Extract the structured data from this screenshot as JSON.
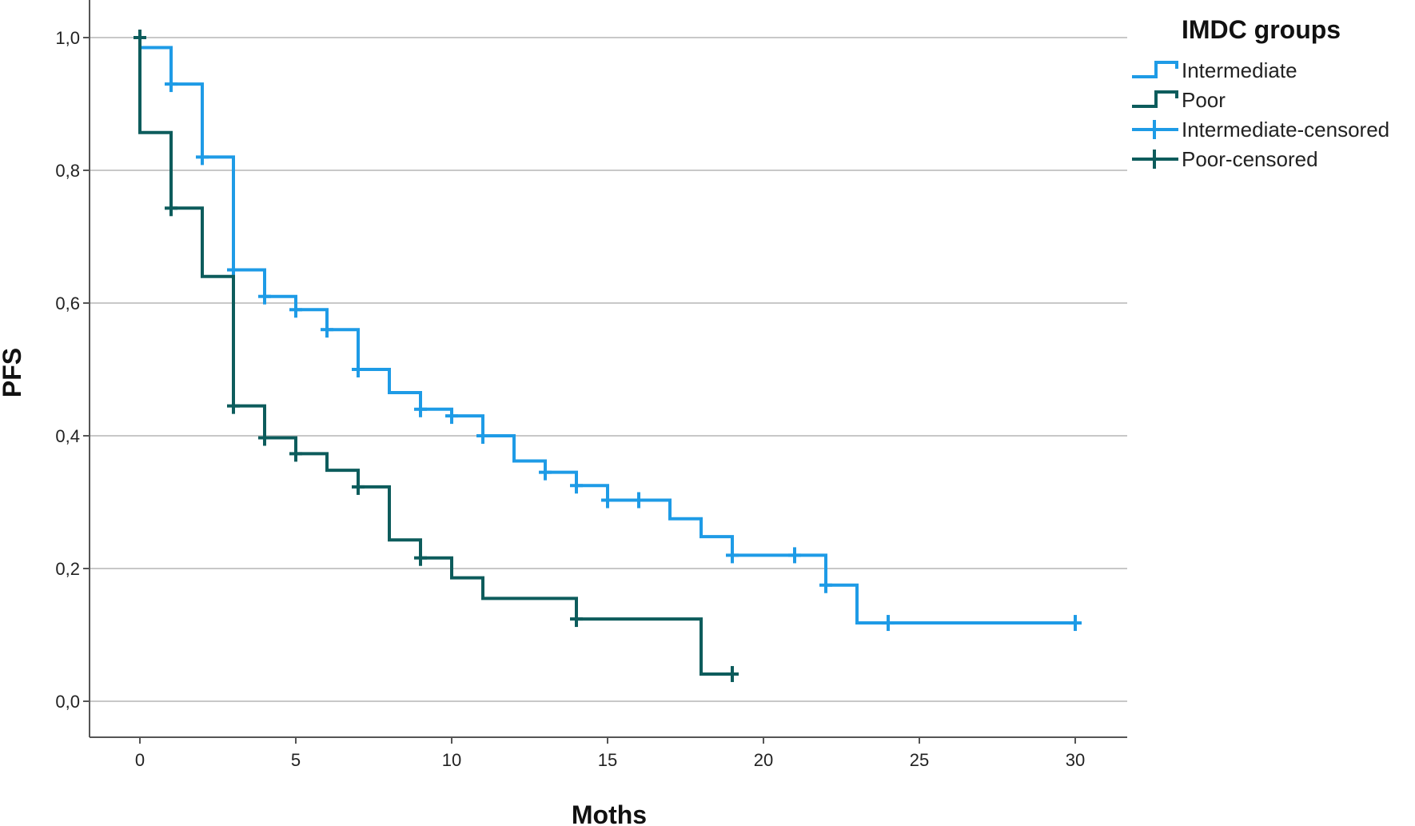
{
  "chart_data": {
    "type": "line",
    "subtype": "kaplan-meier step",
    "title": "",
    "xlabel": "Moths",
    "ylabel": "PFS",
    "xlim": [
      0,
      30
    ],
    "ylim": [
      0,
      1
    ],
    "x_ticks": [
      0,
      5,
      10,
      15,
      20,
      25,
      30
    ],
    "y_ticks": [
      "0,0",
      "0,2",
      "0,4",
      "0,6",
      "0,8",
      "1,0"
    ],
    "y_tick_values": [
      0,
      0.2,
      0.4,
      0.6,
      0.8,
      1.0
    ],
    "grid": "horizontal",
    "legend_title": "IMDC groups",
    "legend_position": "top-right",
    "legend": [
      {
        "label": "Intermediate",
        "kind": "step",
        "color": "#1e9be6"
      },
      {
        "label": "Poor",
        "kind": "step",
        "color": "#0d5c5c"
      },
      {
        "label": "Intermediate-censored",
        "kind": "censor",
        "color": "#1e9be6"
      },
      {
        "label": "Poor-censored",
        "kind": "censor",
        "color": "#0d5c5c"
      }
    ],
    "series": [
      {
        "name": "Intermediate",
        "color": "#1e9be6",
        "steps": [
          [
            0,
            0.985
          ],
          [
            1,
            0.93
          ],
          [
            2,
            0.82
          ],
          [
            3,
            0.65
          ],
          [
            4,
            0.61
          ],
          [
            5,
            0.59
          ],
          [
            6,
            0.56
          ],
          [
            7,
            0.5
          ],
          [
            8,
            0.465
          ],
          [
            9,
            0.44
          ],
          [
            10,
            0.43
          ],
          [
            11,
            0.4
          ],
          [
            12,
            0.362
          ],
          [
            13,
            0.345
          ],
          [
            14,
            0.325
          ],
          [
            15,
            0.303
          ],
          [
            17,
            0.275
          ],
          [
            18,
            0.248
          ],
          [
            19,
            0.22
          ],
          [
            22,
            0.175
          ],
          [
            23,
            0.118
          ]
        ],
        "end_x": 30,
        "censored": [
          [
            1,
            0.93
          ],
          [
            2,
            0.82
          ],
          [
            3,
            0.65
          ],
          [
            4,
            0.61
          ],
          [
            5,
            0.59
          ],
          [
            6,
            0.56
          ],
          [
            7,
            0.5
          ],
          [
            9,
            0.44
          ],
          [
            10,
            0.43
          ],
          [
            11,
            0.4
          ],
          [
            13,
            0.345
          ],
          [
            14,
            0.325
          ],
          [
            15,
            0.303
          ],
          [
            16,
            0.303
          ],
          [
            19,
            0.22
          ],
          [
            21,
            0.22
          ],
          [
            22,
            0.175
          ],
          [
            24,
            0.118
          ],
          [
            30,
            0.118
          ]
        ]
      },
      {
        "name": "Poor",
        "color": "#0d5c5c",
        "steps": [
          [
            0,
            1.0
          ],
          [
            0,
            0.857
          ],
          [
            1,
            0.743
          ],
          [
            2,
            0.64
          ],
          [
            3,
            0.445
          ],
          [
            4,
            0.397
          ],
          [
            5,
            0.373
          ],
          [
            6,
            0.348
          ],
          [
            7,
            0.323
          ],
          [
            8,
            0.243
          ],
          [
            9,
            0.216
          ],
          [
            10,
            0.186
          ],
          [
            11,
            0.155
          ],
          [
            14,
            0.124
          ],
          [
            18,
            0.041
          ]
        ],
        "end_x": 19,
        "censored": [
          [
            0,
            1.0
          ],
          [
            1,
            0.743
          ],
          [
            3,
            0.445
          ],
          [
            4,
            0.397
          ],
          [
            5,
            0.373
          ],
          [
            7,
            0.323
          ],
          [
            9,
            0.216
          ],
          [
            14,
            0.124
          ],
          [
            19,
            0.041
          ]
        ]
      }
    ]
  }
}
